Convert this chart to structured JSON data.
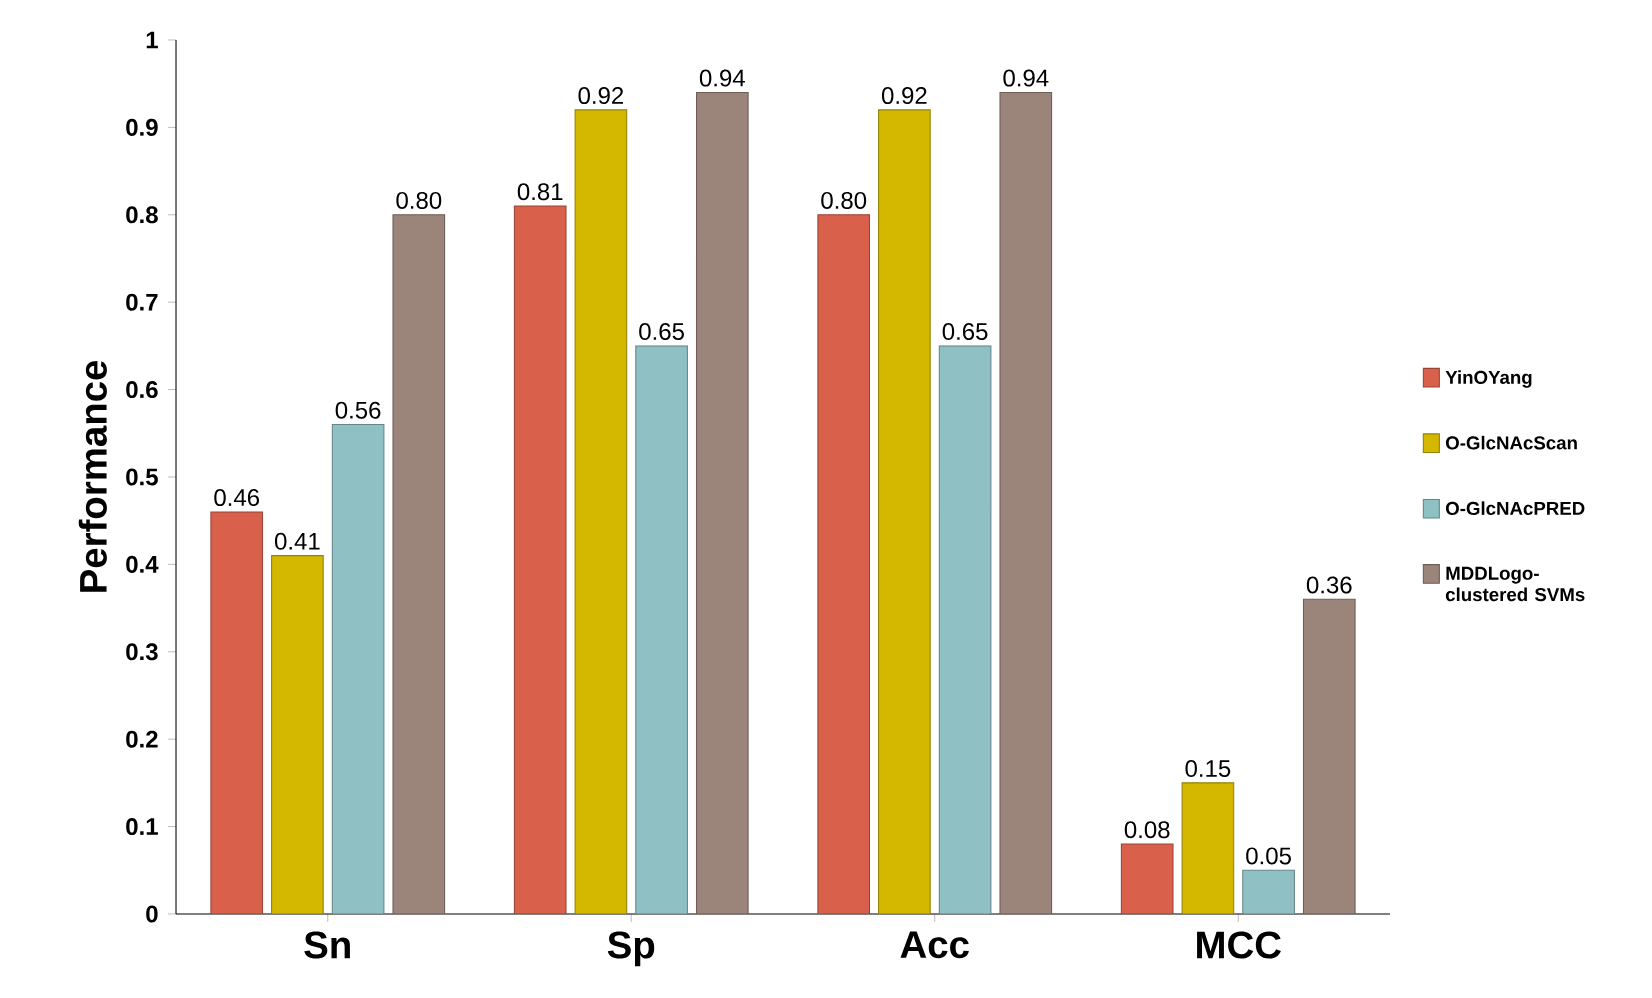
{
  "chart_data": {
    "type": "bar",
    "ylabel": "Performance",
    "categories": [
      "Sn",
      "Sp",
      "Acc",
      "MCC"
    ],
    "series": [
      {
        "name": "YinOYang",
        "color": "#d9614c",
        "values": [
          0.46,
          0.81,
          0.8,
          0.08
        ],
        "value_labels": [
          "0.46",
          "0.81",
          "0.80",
          "0.08"
        ]
      },
      {
        "name": "O-GlcNAcScan",
        "color": "#d4b800",
        "values": [
          0.41,
          0.92,
          0.92,
          0.15
        ],
        "value_labels": [
          "0.41",
          "0.92",
          "0.92",
          "0.15"
        ]
      },
      {
        "name": "O-GlcNAcPRED",
        "color": "#8fc0c4",
        "values": [
          0.56,
          0.65,
          0.65,
          0.05
        ],
        "value_labels": [
          "0.56",
          "0.65",
          "0.65",
          "0.05"
        ]
      },
      {
        "name": "MDDLogo-clustered SVMs",
        "color": "#9b857a",
        "values": [
          0.8,
          0.94,
          0.94,
          0.36
        ],
        "value_labels": [
          "0.80",
          "0.94",
          "0.94",
          "0.36"
        ]
      }
    ],
    "ylim": [
      0,
      1
    ],
    "yticks": [
      0,
      0.1,
      0.2,
      0.3,
      0.4,
      0.5,
      0.6,
      0.7,
      0.8,
      0.9,
      1
    ],
    "legend": "right",
    "grid": false
  }
}
